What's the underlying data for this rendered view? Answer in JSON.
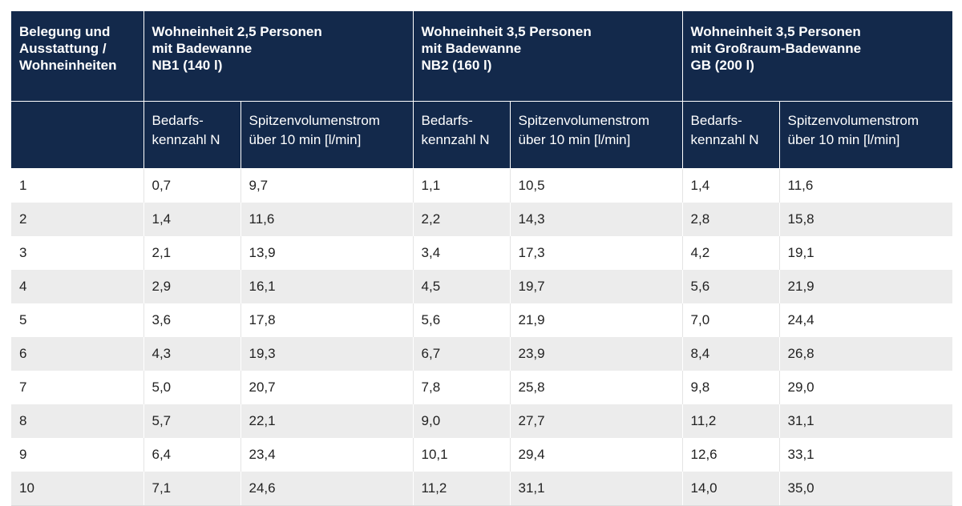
{
  "header": {
    "col0": [
      "Belegung und",
      "Ausstattung /",
      "Wohneinheiten"
    ],
    "groups": [
      [
        "Wohneinheit 2,5 Personen",
        "mit Badewanne",
        "NB1 (140 l)"
      ],
      [
        "Wohneinheit 3,5 Personen",
        "mit Badewanne",
        "NB2 (160 l)"
      ],
      [
        "Wohneinheit 3,5 Personen",
        "mit Großraum-Badewanne",
        "GB (200 l)"
      ]
    ],
    "sub_n": [
      "Bedarfs-",
      "kennzahl N"
    ],
    "sub_s": [
      "Spitzenvolumenstrom",
      "über 10 min [l/min]"
    ]
  },
  "rows": [
    [
      "1",
      "0,7",
      "9,7",
      "1,1",
      "10,5",
      "1,4",
      "11,6"
    ],
    [
      "2",
      "1,4",
      "11,6",
      "2,2",
      "14,3",
      "2,8",
      "15,8"
    ],
    [
      "3",
      "2,1",
      "13,9",
      "3,4",
      "17,3",
      "4,2",
      "19,1"
    ],
    [
      "4",
      "2,9",
      "16,1",
      "4,5",
      "19,7",
      "5,6",
      "21,9"
    ],
    [
      "5",
      "3,6",
      "17,8",
      "5,6",
      "21,9",
      "7,0",
      "24,4"
    ],
    [
      "6",
      "4,3",
      "19,3",
      "6,7",
      "23,9",
      "8,4",
      "26,8"
    ],
    [
      "7",
      "5,0",
      "20,7",
      "7,8",
      "25,8",
      "9,8",
      "29,0"
    ],
    [
      "8",
      "5,7",
      "22,1",
      "9,0",
      "27,7",
      "11,2",
      "31,1"
    ],
    [
      "9",
      "6,4",
      "23,4",
      "10,1",
      "29,4",
      "12,6",
      "33,1"
    ],
    [
      "10",
      "7,1",
      "24,6",
      "11,2",
      "31,1",
      "14,0",
      "35,0"
    ]
  ],
  "colors": {
    "header_bg": "#13294b",
    "stripe": "#ececec"
  }
}
